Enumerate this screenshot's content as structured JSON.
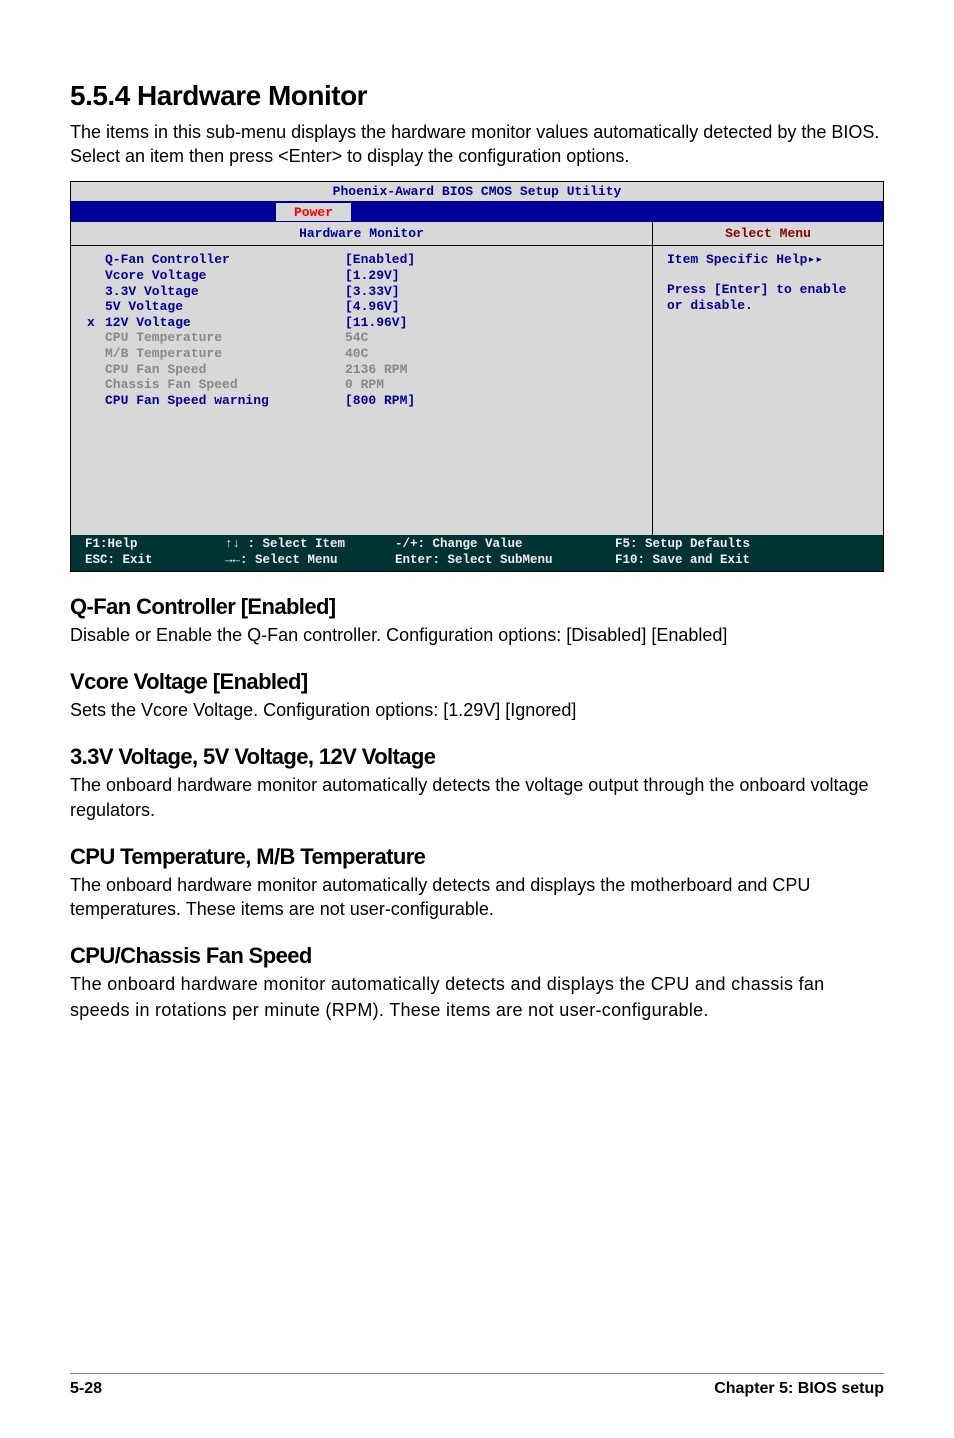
{
  "section": {
    "number_title": "5.5.4  Hardware Monitor",
    "intro": "The items in this sub-menu displays the hardware monitor values automatically detected by the BIOS. Select an item then press <Enter> to display the configuration options."
  },
  "bios": {
    "title": "Phoenix-Award BIOS CMOS Setup Utility",
    "active_menu": "Power",
    "panel_header_left": "Hardware Monitor",
    "panel_header_right": "Select Menu",
    "rows": [
      {
        "marker": "",
        "label": "Q-Fan Controller",
        "value": "[Enabled]",
        "muted": false
      },
      {
        "marker": "",
        "label": "Vcore Voltage",
        "value": "[1.29V]",
        "muted": false
      },
      {
        "marker": "",
        "label": "3.3V Voltage",
        "value": "[3.33V]",
        "muted": false
      },
      {
        "marker": "",
        "label": "5V Voltage",
        "value": "[4.96V]",
        "muted": false
      },
      {
        "marker": "x",
        "label": "12V Voltage",
        "value": "[11.96V]",
        "muted": false
      },
      {
        "marker": "",
        "label": "",
        "value": "",
        "muted": false
      },
      {
        "marker": "",
        "label": "CPU Temperature",
        "value": "54C",
        "muted": true
      },
      {
        "marker": "",
        "label": "M/B Temperature",
        "value": "40C",
        "muted": true
      },
      {
        "marker": "",
        "label": "CPU Fan Speed",
        "value": "2136 RPM",
        "muted": true
      },
      {
        "marker": "",
        "label": "Chassis Fan Speed",
        "value": "0 RPM",
        "muted": true
      },
      {
        "marker": "",
        "label": "CPU Fan Speed warning",
        "value": "[800 RPM]",
        "muted": false
      }
    ],
    "help": {
      "line1a": "Item Specific Help",
      "line1b": "▸▸",
      "line2_press": "Press ",
      "line2_key": "[Enter]",
      "line2_mid": " to ",
      "line2_action": "enable or disable."
    },
    "footer": {
      "r1c1": "F1:Help",
      "r1c2": "↑↓ : Select Item",
      "r1c3": "-/+: Change Value",
      "r1c4": "F5: Setup Defaults",
      "r2c1": "ESC: Exit",
      "r2c2": "→←: Select Menu",
      "r2c3": "Enter: Select SubMenu",
      "r2c4": "F10: Save and Exit"
    }
  },
  "subsections": [
    {
      "heading": "Q-Fan Controller [Enabled]",
      "body": "Disable or Enable the Q-Fan controller. Configuration options: [Disabled] [Enabled]",
      "mono": false
    },
    {
      "heading": "Vcore Voltage [Enabled]",
      "body": "Sets the Vcore Voltage. Configuration options: [1.29V] [Ignored]",
      "mono": false
    },
    {
      "heading": "3.3V Voltage, 5V Voltage, 12V Voltage",
      "body": "The onboard hardware monitor automatically detects the voltage output through the onboard voltage regulators.",
      "mono": false
    },
    {
      "heading": "CPU Temperature, M/B Temperature",
      "body": "The onboard hardware monitor automatically detects and displays the motherboard and CPU temperatures. These items are not user-configurable.",
      "mono": false
    },
    {
      "heading": "CPU/Chassis Fan Speed",
      "body": "The onboard hardware monitor automatically detects and displays the CPU and chassis fan speeds in rotations per minute (RPM). These items are not user-configurable.",
      "mono": true
    }
  ],
  "page_footer": {
    "left": "5-28",
    "right": "Chapter 5: BIOS setup"
  }
}
